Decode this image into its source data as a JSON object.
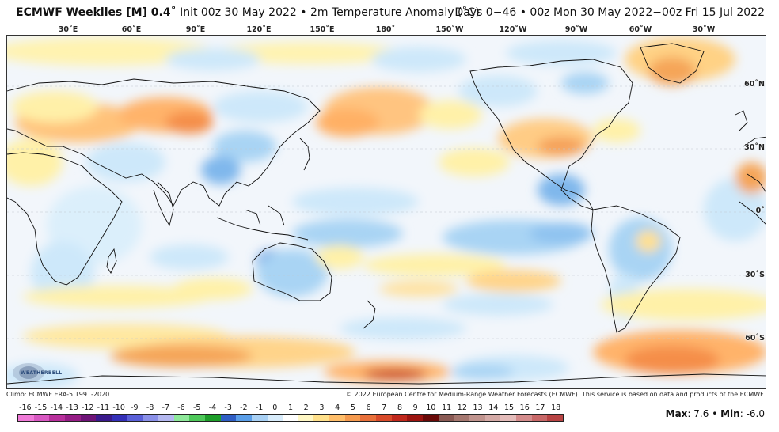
{
  "header": {
    "model": "ECMWF Weeklies [M] 0.4˚",
    "init": "Init 00z 30 May 2022",
    "bullet": "•",
    "field": "2m Temperature Anomaly (˚C)",
    "right": "Days 0−46 • 00z Mon 30 May 2022−00z Fri 15 Jul 2022"
  },
  "longitude_labels": [
    "30˚E",
    "60˚E",
    "90˚E",
    "120˚E",
    "150˚E",
    "180˚",
    "150˚W",
    "120˚W",
    "90˚W",
    "60˚W",
    "30˚W"
  ],
  "latitude_labels": [
    "60˚N",
    "30˚N",
    "0˚",
    "30˚S",
    "60˚S"
  ],
  "logo_text": "WEATHERBELL",
  "footer": {
    "climo": "Climo: ECMWF ERA-5 1991-2020",
    "copyright": "© 2022 European Centre for Medium-Range Weather Forecasts (ECMWF). This service is based on data and products of the ECMWF."
  },
  "colorbar": {
    "labels": [
      "-16",
      "-15",
      "-14",
      "-13",
      "-12",
      "-11",
      "-10",
      "-9",
      "-8",
      "-7",
      "-6",
      "-5",
      "-4",
      "-3",
      "-2",
      "-1",
      "0",
      "1",
      "2",
      "3",
      "4",
      "5",
      "6",
      "7",
      "8",
      "9",
      "10",
      "11",
      "12",
      "13",
      "14",
      "15",
      "16",
      "17",
      "18"
    ],
    "colors": [
      "#f07ad8",
      "#d858c2",
      "#b8309c",
      "#961e86",
      "#6e1478",
      "#3a1a8c",
      "#3430b8",
      "#5a60d8",
      "#8a90e8",
      "#b4b8f0",
      "#8ee89a",
      "#4ec85a",
      "#1e9e2a",
      "#2f5ec4",
      "#5a9ee8",
      "#a8d0f4",
      "#d8ecfb",
      "#ffffff",
      "#fff7c4",
      "#ffe08a",
      "#ffbe6a",
      "#f59a4e",
      "#e8703a",
      "#d84a2a",
      "#c0281c",
      "#9c1410",
      "#6a0a08",
      "#8a5a54",
      "#a57870",
      "#c0948e",
      "#d4aaa6",
      "#e4bcba",
      "#d48c8c",
      "#c86868",
      "#b84444"
    ]
  },
  "stats": {
    "max_label": "Max",
    "max_value": "7.6",
    "sep": "•",
    "min_label": "Min",
    "min_value": "-6.0"
  }
}
